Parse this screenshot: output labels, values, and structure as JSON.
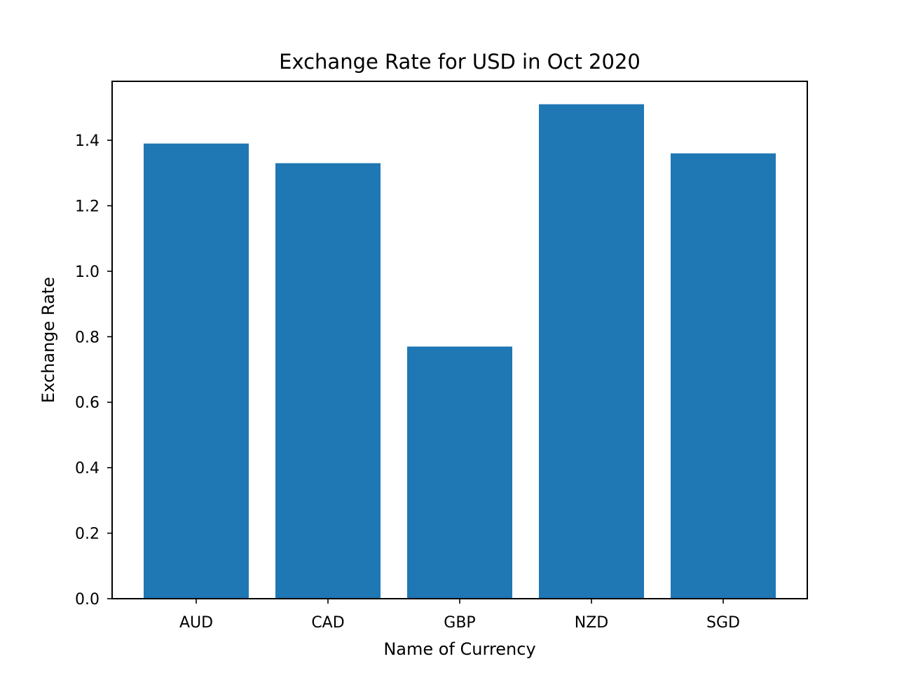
{
  "chart_data": {
    "type": "bar",
    "title": "Exchange Rate for USD in Oct 2020",
    "xlabel": "Name of Currency",
    "ylabel": "Exchange Rate",
    "categories": [
      "AUD",
      "CAD",
      "GBP",
      "NZD",
      "SGD"
    ],
    "values": [
      1.39,
      1.33,
      0.77,
      1.51,
      1.36
    ],
    "ylim": [
      0,
      1.58
    ],
    "yticks": [
      "0.0",
      "0.2",
      "0.4",
      "0.6",
      "0.8",
      "1.0",
      "1.2",
      "1.4"
    ],
    "grid": false,
    "bar_color": "#1f77b4"
  }
}
